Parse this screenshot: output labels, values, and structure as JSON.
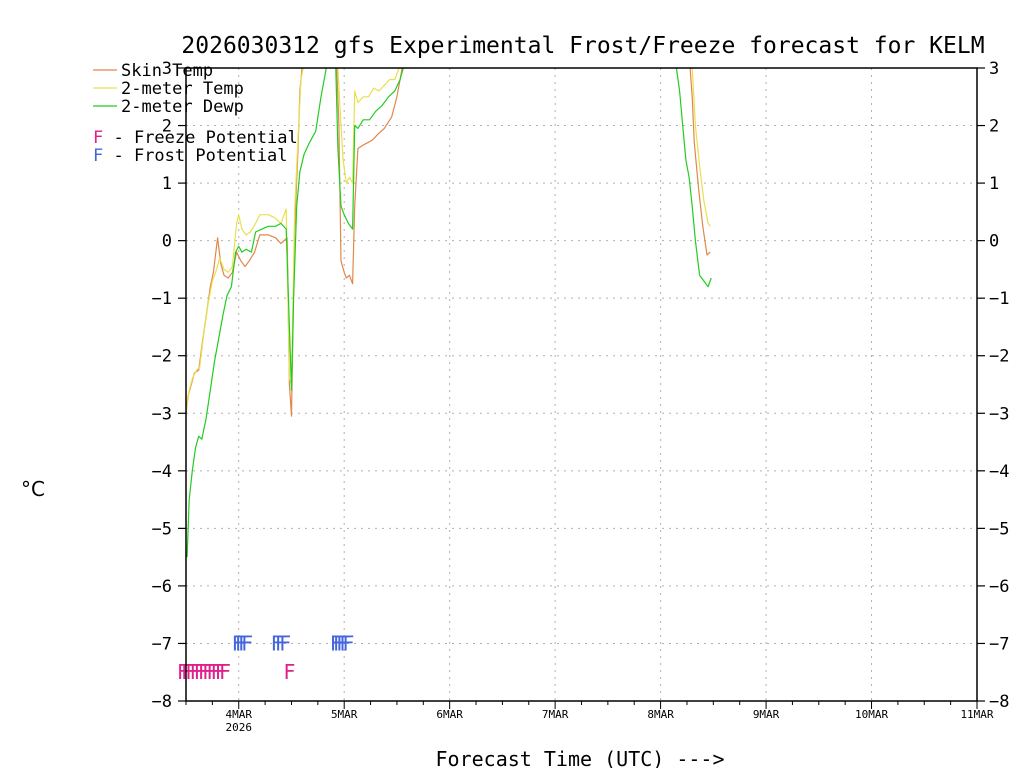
{
  "chart_data": {
    "type": "line",
    "title": "2026030312 gfs Experimental Frost/Freeze forecast for KELM",
    "ylabel": "°C",
    "xlabel": "Forecast Time (UTC) --->",
    "ylim": [
      -8,
      3
    ],
    "yticks": [
      -8,
      -7,
      -6,
      -5,
      -4,
      -3,
      -2,
      -1,
      0,
      1,
      2,
      3
    ],
    "yticks_right": [
      "-8",
      "-7",
      "-6",
      "-5",
      "-4",
      "-3",
      "-2",
      "-1",
      "0",
      "1",
      "2",
      "3"
    ],
    "xlim_days": [
      3.5,
      11.0
    ],
    "xticks": [
      {
        "day": 4,
        "label": "4MAR",
        "sublabel": "2026"
      },
      {
        "day": 5,
        "label": "5MAR"
      },
      {
        "day": 6,
        "label": "6MAR"
      },
      {
        "day": 7,
        "label": "7MAR"
      },
      {
        "day": 8,
        "label": "8MAR"
      },
      {
        "day": 9,
        "label": "9MAR"
      },
      {
        "day": 10,
        "label": "10MAR"
      },
      {
        "day": 11,
        "label": "11MAR"
      }
    ],
    "grid": true,
    "legend_position": "top-left",
    "series": [
      {
        "name": "Skin Temp",
        "legend_label": "Skin Temp",
        "color": "#e0884a",
        "segments": [
          [
            [
              3.5,
              -3.0
            ],
            [
              3.52,
              -2.7
            ],
            [
              3.55,
              -2.5
            ],
            [
              3.58,
              -2.3
            ],
            [
              3.62,
              -2.25
            ],
            [
              3.66,
              -1.7
            ],
            [
              3.7,
              -1.2
            ],
            [
              3.73,
              -0.8
            ],
            [
              3.76,
              -0.55
            ],
            [
              3.8,
              0.05
            ],
            [
              3.83,
              -0.4
            ],
            [
              3.86,
              -0.6
            ],
            [
              3.9,
              -0.65
            ],
            [
              3.94,
              -0.55
            ],
            [
              3.98,
              -0.2
            ],
            [
              4.02,
              -0.35
            ],
            [
              4.06,
              -0.45
            ],
            [
              4.1,
              -0.35
            ],
            [
              4.15,
              -0.2
            ],
            [
              4.2,
              0.1
            ],
            [
              4.28,
              0.1
            ],
            [
              4.35,
              0.05
            ],
            [
              4.4,
              -0.05
            ],
            [
              4.46,
              0.05
            ],
            [
              4.48,
              -2.5
            ],
            [
              4.5,
              -3.05
            ],
            [
              4.53,
              0.2
            ],
            [
              4.56,
              1.5
            ],
            [
              4.58,
              2.6
            ],
            [
              4.6,
              3.0
            ]
          ],
          [
            [
              4.93,
              3.0
            ],
            [
              4.95,
              2.0
            ],
            [
              4.97,
              -0.35
            ],
            [
              5.0,
              -0.55
            ],
            [
              5.02,
              -0.65
            ],
            [
              5.05,
              -0.6
            ],
            [
              5.08,
              -0.75
            ],
            [
              5.1,
              0.6
            ],
            [
              5.13,
              1.6
            ],
            [
              5.17,
              1.65
            ],
            [
              5.22,
              1.7
            ],
            [
              5.27,
              1.75
            ],
            [
              5.32,
              1.85
            ],
            [
              5.38,
              1.95
            ],
            [
              5.45,
              2.15
            ],
            [
              5.5,
              2.5
            ],
            [
              5.53,
              2.8
            ],
            [
              5.55,
              3.0
            ]
          ],
          [
            [
              8.28,
              3.0
            ],
            [
              8.3,
              2.5
            ],
            [
              8.32,
              1.7
            ],
            [
              8.36,
              0.9
            ],
            [
              8.4,
              0.25
            ],
            [
              8.44,
              -0.25
            ],
            [
              8.47,
              -0.2
            ]
          ]
        ]
      },
      {
        "name": "2-meter Temp",
        "legend_label": "2-meter Temp",
        "color": "#e8e050",
        "segments": [
          [
            [
              3.5,
              -3.0
            ],
            [
              3.53,
              -2.6
            ],
            [
              3.56,
              -2.4
            ],
            [
              3.6,
              -2.25
            ],
            [
              3.63,
              -2.2
            ],
            [
              3.67,
              -1.6
            ],
            [
              3.71,
              -1.1
            ],
            [
              3.75,
              -0.7
            ],
            [
              3.79,
              -0.5
            ],
            [
              3.82,
              -0.3
            ],
            [
              3.86,
              -0.5
            ],
            [
              3.9,
              -0.55
            ],
            [
              3.94,
              -0.45
            ],
            [
              3.98,
              0.3
            ],
            [
              4.0,
              0.45
            ],
            [
              4.03,
              0.2
            ],
            [
              4.07,
              0.1
            ],
            [
              4.11,
              0.15
            ],
            [
              4.16,
              0.3
            ],
            [
              4.2,
              0.45
            ],
            [
              4.28,
              0.45
            ],
            [
              4.34,
              0.4
            ],
            [
              4.4,
              0.3
            ],
            [
              4.45,
              0.55
            ],
            [
              4.48,
              -2.4
            ],
            [
              4.5,
              -2.5
            ],
            [
              4.53,
              0.5
            ],
            [
              4.56,
              1.7
            ],
            [
              4.59,
              2.8
            ],
            [
              4.61,
              3.0
            ]
          ],
          [
            [
              4.94,
              3.0
            ],
            [
              4.96,
              2.3
            ],
            [
              4.99,
              1.4
            ],
            [
              5.02,
              1.0
            ],
            [
              5.05,
              1.1
            ],
            [
              5.08,
              1.0
            ],
            [
              5.1,
              2.6
            ],
            [
              5.13,
              2.4
            ],
            [
              5.18,
              2.5
            ],
            [
              5.23,
              2.5
            ],
            [
              5.28,
              2.65
            ],
            [
              5.33,
              2.6
            ],
            [
              5.38,
              2.7
            ],
            [
              5.43,
              2.8
            ],
            [
              5.48,
              2.8
            ],
            [
              5.52,
              3.0
            ]
          ],
          [
            [
              8.3,
              3.0
            ],
            [
              8.33,
              2.0
            ],
            [
              8.37,
              1.3
            ],
            [
              8.41,
              0.7
            ],
            [
              8.45,
              0.3
            ],
            [
              8.47,
              0.25
            ]
          ]
        ]
      },
      {
        "name": "2-meter Dewp",
        "legend_label": "2-meter Dewp",
        "color": "#22cc22",
        "segments": [
          [
            [
              3.51,
              -5.5
            ],
            [
              3.53,
              -4.5
            ],
            [
              3.56,
              -4.0
            ],
            [
              3.59,
              -3.6
            ],
            [
              3.62,
              -3.4
            ],
            [
              3.65,
              -3.45
            ],
            [
              3.69,
              -3.1
            ],
            [
              3.73,
              -2.6
            ],
            [
              3.77,
              -2.1
            ],
            [
              3.81,
              -1.7
            ],
            [
              3.85,
              -1.3
            ],
            [
              3.89,
              -0.95
            ],
            [
              3.93,
              -0.8
            ],
            [
              3.97,
              -0.2
            ],
            [
              4.0,
              -0.1
            ],
            [
              4.03,
              -0.2
            ],
            [
              4.07,
              -0.15
            ],
            [
              4.12,
              -0.2
            ],
            [
              4.16,
              0.15
            ],
            [
              4.22,
              0.2
            ],
            [
              4.28,
              0.25
            ],
            [
              4.35,
              0.25
            ],
            [
              4.4,
              0.3
            ],
            [
              4.45,
              0.2
            ],
            [
              4.48,
              -1.5
            ],
            [
              4.5,
              -2.6
            ],
            [
              4.52,
              -1.0
            ],
            [
              4.55,
              0.6
            ],
            [
              4.58,
              1.2
            ],
            [
              4.62,
              1.5
            ],
            [
              4.67,
              1.7
            ],
            [
              4.73,
              1.9
            ],
            [
              4.78,
              2.5
            ],
            [
              4.83,
              3.0
            ]
          ],
          [
            [
              4.92,
              3.0
            ],
            [
              4.94,
              1.6
            ],
            [
              4.97,
              0.6
            ],
            [
              5.0,
              0.45
            ],
            [
              5.04,
              0.3
            ],
            [
              5.08,
              0.2
            ],
            [
              5.1,
              2.0
            ],
            [
              5.13,
              1.95
            ],
            [
              5.18,
              2.1
            ],
            [
              5.24,
              2.1
            ],
            [
              5.3,
              2.25
            ],
            [
              5.36,
              2.35
            ],
            [
              5.42,
              2.5
            ],
            [
              5.48,
              2.6
            ],
            [
              5.53,
              2.8
            ],
            [
              5.56,
              3.0
            ]
          ],
          [
            [
              8.15,
              3.0
            ],
            [
              8.18,
              2.6
            ],
            [
              8.21,
              2.0
            ],
            [
              8.24,
              1.4
            ],
            [
              8.27,
              1.1
            ],
            [
              8.3,
              0.6
            ],
            [
              8.33,
              0.0
            ],
            [
              8.37,
              -0.6
            ],
            [
              8.41,
              -0.7
            ],
            [
              8.45,
              -0.8
            ],
            [
              8.48,
              -0.65
            ]
          ]
        ]
      }
    ],
    "potential_legend": [
      {
        "glyph": "F",
        "text": " - Freeze Potential",
        "color": "#e0208a"
      },
      {
        "glyph": "F",
        "text": " - Frost Potential",
        "color": "#4466dd"
      }
    ],
    "freeze_potential": {
      "glyph": "F",
      "color": "#e0208a",
      "y": -7.5,
      "times": [
        3.47,
        3.51,
        3.55,
        3.59,
        3.63,
        3.67,
        3.71,
        3.75,
        3.79,
        3.83,
        3.87,
        4.48
      ]
    },
    "frost_potential": {
      "glyph": "F",
      "color": "#4466dd",
      "y": -7.0,
      "times": [
        3.99,
        4.02,
        4.05,
        4.08,
        4.36,
        4.4,
        4.44,
        4.92,
        4.95,
        4.98,
        5.01,
        5.04
      ]
    }
  }
}
